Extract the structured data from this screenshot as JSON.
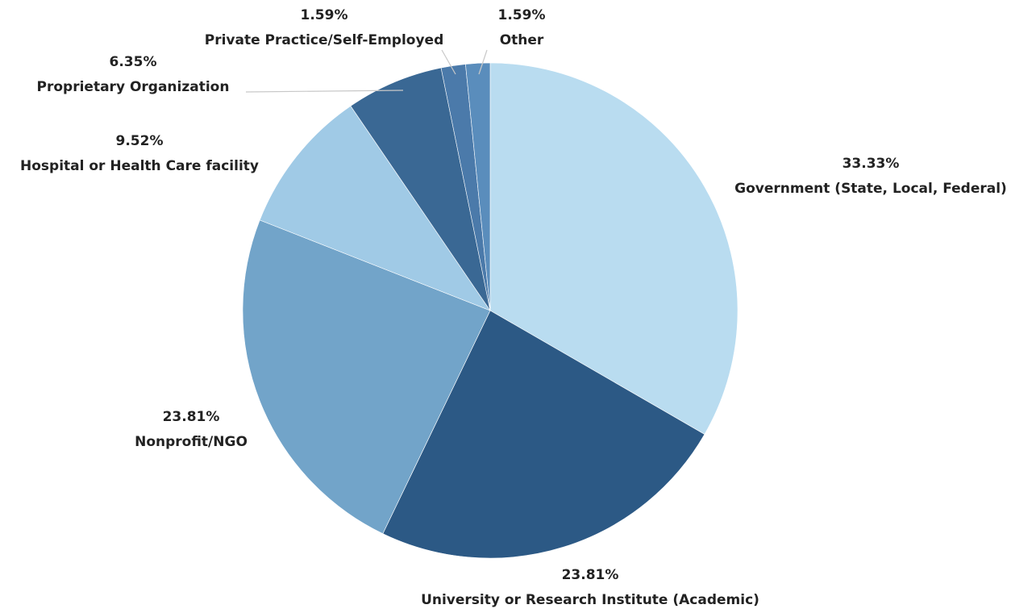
{
  "chart_data": {
    "type": "pie",
    "categories": [
      "Government (State, Local, Federal)",
      "University or Research Institute (Academic)",
      "Nonprofit/NGO",
      "Hospital or Health Care facility",
      "Proprietary Organization",
      "Private Practice/Self-Employed",
      "Other"
    ],
    "values": [
      33.33,
      23.81,
      23.81,
      9.52,
      6.35,
      1.59,
      1.59
    ],
    "value_labels": [
      "33.33%",
      "23.81%",
      "23.81%",
      "9.52%",
      "6.35%",
      "1.59%",
      "1.59%"
    ],
    "colors": [
      "#b9dcf0",
      "#2c5985",
      "#72a4c9",
      "#a0cae6",
      "#3a6894",
      "#4b7aaa",
      "#5a8dbc"
    ]
  }
}
